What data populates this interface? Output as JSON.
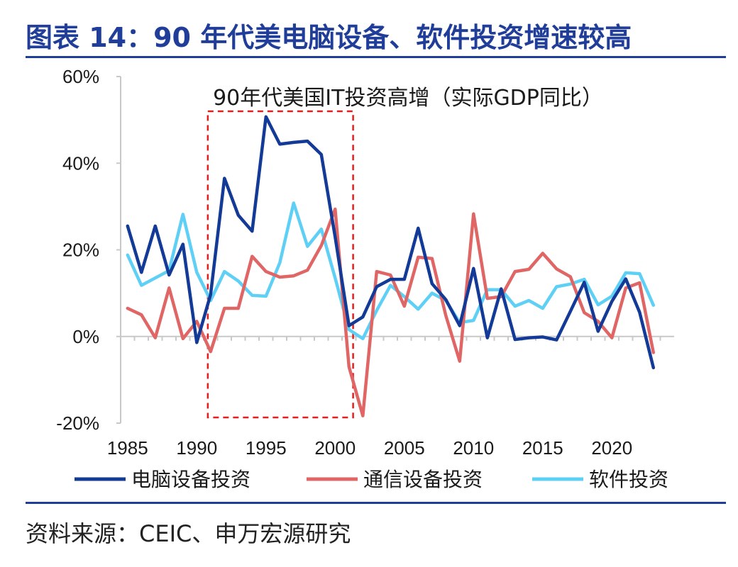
{
  "header": {
    "title": "图表 14：90 年代美电脑设备、软件投资增速较高"
  },
  "footer": {
    "source": "资料来源：CEIC、申万宏源研究"
  },
  "colors": {
    "title": "#1f3d99",
    "computer": "#123a96",
    "telecom": "#e06666",
    "software": "#5fd0f5",
    "highlight_box": "#e02020"
  },
  "chart_data": {
    "type": "line",
    "annotation": "90年代美国IT投资高增（实际GDP同比）",
    "highlight_range": [
      1990.8,
      2001.3
    ],
    "ylim": [
      -0.2,
      0.6
    ],
    "xlim": [
      1984.5,
      2024.5
    ],
    "y_ticks": [
      -0.2,
      0,
      0.2,
      0.4,
      0.6
    ],
    "y_tick_labels": [
      "-20%",
      "0%",
      "20%",
      "40%",
      "60%"
    ],
    "x_ticks": [
      1985,
      1990,
      1995,
      2000,
      2005,
      2010,
      2015,
      2020
    ],
    "x_tick_labels": [
      "1985",
      "1990",
      "1995",
      "2000",
      "2005",
      "2010",
      "2015",
      "2020"
    ],
    "x": [
      1985,
      1986,
      1987,
      1988,
      1989,
      1990,
      1991,
      1992,
      1993,
      1994,
      1995,
      1996,
      1997,
      1998,
      1999,
      2000,
      2001,
      2002,
      2003,
      2004,
      2005,
      2006,
      2007,
      2008,
      2009,
      2010,
      2011,
      2012,
      2013,
      2014,
      2015,
      2016,
      2017,
      2018,
      2019,
      2020,
      2021,
      2022,
      2023
    ],
    "series": [
      {
        "name": "电脑设备投资",
        "key": "computer",
        "values": [
          0.255,
          0.148,
          0.255,
          0.142,
          0.213,
          -0.014,
          0.097,
          0.365,
          0.28,
          0.243,
          0.507,
          0.444,
          0.448,
          0.451,
          0.42,
          0.23,
          0.025,
          0.045,
          0.115,
          0.132,
          0.132,
          0.25,
          0.122,
          0.085,
          0.025,
          0.157,
          -0.003,
          0.11,
          -0.007,
          -0.003,
          -0.001,
          -0.008,
          0.058,
          0.125,
          0.012,
          0.081,
          0.133,
          0.056,
          -0.072
        ]
      },
      {
        "name": "通信设备投资",
        "key": "telecom",
        "values": [
          0.065,
          0.05,
          -0.003,
          0.112,
          -0.005,
          0.035,
          -0.035,
          0.065,
          0.065,
          0.185,
          0.15,
          0.137,
          0.14,
          0.153,
          0.21,
          0.294,
          -0.07,
          -0.183,
          0.15,
          0.142,
          0.07,
          0.183,
          0.18,
          0.048,
          -0.057,
          0.283,
          0.088,
          0.092,
          0.15,
          0.155,
          0.192,
          0.156,
          0.138,
          0.055,
          0.035,
          -0.003,
          0.112,
          0.124,
          -0.037
        ]
      },
      {
        "name": "软件投资",
        "key": "software",
        "values": [
          0.188,
          0.118,
          0.135,
          0.152,
          0.282,
          0.148,
          0.083,
          0.15,
          0.128,
          0.095,
          0.093,
          0.17,
          0.308,
          0.208,
          0.248,
          0.135,
          0.016,
          -0.005,
          0.06,
          0.118,
          0.092,
          0.063,
          0.1,
          0.083,
          0.032,
          0.037,
          0.108,
          0.108,
          0.07,
          0.083,
          0.065,
          0.115,
          0.121,
          0.132,
          0.073,
          0.093,
          0.147,
          0.145,
          0.072
        ]
      }
    ]
  }
}
